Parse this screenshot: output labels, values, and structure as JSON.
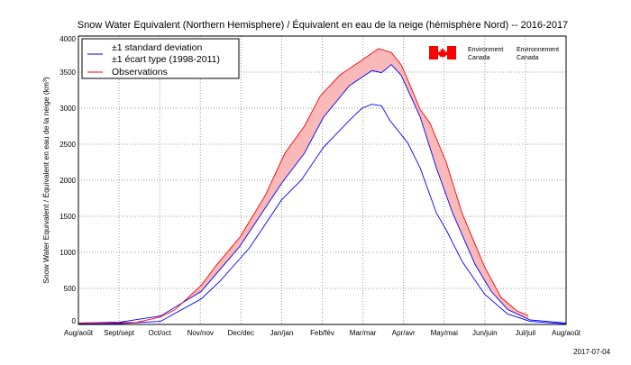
{
  "chart_data": {
    "type": "line",
    "title": "Snow Water Equivalent (Northern Hemisphere) / Équivalent en eau de la neige (hémisphère Nord) -- 2016-2017",
    "xlabel": "",
    "ylabel": "Snow Water Equivalent / Équivalent en eau de la neige (km³)",
    "ylim": [
      0,
      4000
    ],
    "xlim": [
      0,
      12
    ],
    "x_unit": "months since Aug 1",
    "yticks": [
      0,
      500,
      1000,
      1500,
      2000,
      2500,
      3000,
      3500,
      4000
    ],
    "xtick_labels": [
      "Aug/août",
      "Sept/sept",
      "Oct/oct",
      "Nov/nov",
      "Dec/dec",
      "Jan/jan",
      "Feb/fév",
      "Mar/mar",
      "Apr/avr",
      "May/mai",
      "Jun/juin",
      "Jul/juil",
      "Aug/août"
    ],
    "grid": true,
    "legend_position": "top-left",
    "legend": [
      "±1 standard deviation",
      "±1 écart type (1998-2011)",
      "Observations"
    ],
    "series": [
      {
        "name": "upper_std",
        "color": "#0000ff",
        "x": [
          0,
          1.02,
          2.02,
          3.02,
          3.97,
          5.0,
          5.56,
          6.03,
          6.67,
          7.22,
          7.46,
          7.7,
          7.94,
          8.41,
          8.81,
          9.21,
          9.76,
          10.16,
          10.56,
          11.11,
          12
        ],
        "y": [
          20,
          33,
          117,
          458,
          1083,
          1958,
          2375,
          2875,
          3312,
          3520,
          3492,
          3604,
          3458,
          2875,
          2167,
          1542,
          833,
          458,
          208,
          62,
          20
        ]
      },
      {
        "name": "lower_std",
        "color": "#0000ff",
        "x": [
          0,
          1.02,
          2.02,
          3.02,
          3.49,
          4.21,
          5.0,
          5.48,
          6.03,
          6.67,
          6.98,
          7.22,
          7.46,
          7.66,
          8.1,
          8.41,
          8.81,
          9.05,
          9.44,
          10.0,
          10.56,
          11.11,
          12
        ],
        "y": [
          8,
          12,
          42,
          354,
          604,
          1062,
          1729,
          2000,
          2458,
          2833,
          3000,
          3054,
          3033,
          2833,
          2521,
          2167,
          1542,
          1312,
          875,
          417,
          146,
          42,
          8
        ]
      },
      {
        "name": "Observations",
        "color": "#ff0000",
        "x": [
          0,
          1.02,
          1.43,
          2.02,
          2.38,
          2.62,
          3.02,
          3.41,
          3.97,
          4.6,
          5.08,
          5.56,
          5.95,
          6.43,
          6.98,
          7.38,
          7.7,
          7.94,
          8.1,
          8.41,
          8.65,
          9.05,
          9.44,
          10.0,
          10.4,
          10.79,
          11.07
        ],
        "y": [
          20,
          25,
          29,
          104,
          208,
          333,
          542,
          833,
          1208,
          1792,
          2375,
          2750,
          3167,
          3458,
          3667,
          3825,
          3771,
          3604,
          3396,
          2979,
          2792,
          2250,
          1542,
          792,
          375,
          187,
          125
        ]
      }
    ],
    "fill_color": "#f9b9b9"
  },
  "logo": {
    "left": "Environment\nCanada",
    "right": "Environnement\nCanada"
  },
  "date": "2017-07-04"
}
